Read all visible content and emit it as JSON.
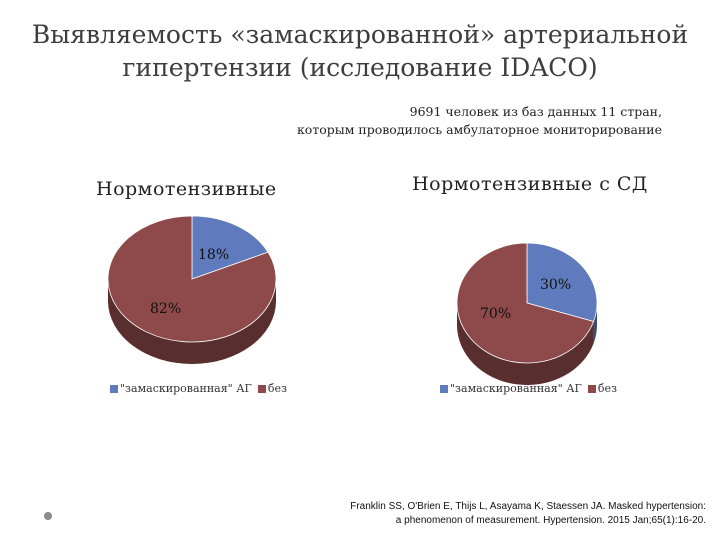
{
  "slide": {
    "title": "Выявляемость «замаскированной» артериальной гипертензии (исследование IDACO)",
    "subtitle_line1": "9691 человек из баз данных 11 стран,",
    "subtitle_line2": "которым проводилось амбулаторное мониторирование",
    "reference_line1": "Franklin SS, O'Brien E, Thijs L, Asayama K, Staessen JA. Masked hypertension:",
    "reference_line2": "a phenomenon of measurement. Hypertension. 2015 Jan;65(1):16-20."
  },
  "colors": {
    "blue": "#5f7bbd",
    "red": "#8e4a4a",
    "red_dark": "#5e2a2a",
    "blue_dark": "#3d538a"
  },
  "chart_data": [
    {
      "type": "pie",
      "title": "Нормотензивные",
      "slices": [
        {
          "name": "\"замаскированная\" АГ",
          "value": 18,
          "label": "18%",
          "color": "#5f7bbd"
        },
        {
          "name": "без",
          "value": 82,
          "label": "82%",
          "color": "#8e4a4a"
        }
      ],
      "legend": "bottom"
    },
    {
      "type": "pie",
      "title": "Нормотензивные с СД",
      "slices": [
        {
          "name": "\"замаскированная\" АГ",
          "value": 30,
          "label": "30%",
          "color": "#5f7bbd"
        },
        {
          "name": "без",
          "value": 70,
          "label": "70%",
          "color": "#8e4a4a"
        }
      ],
      "legend": "bottom"
    }
  ]
}
